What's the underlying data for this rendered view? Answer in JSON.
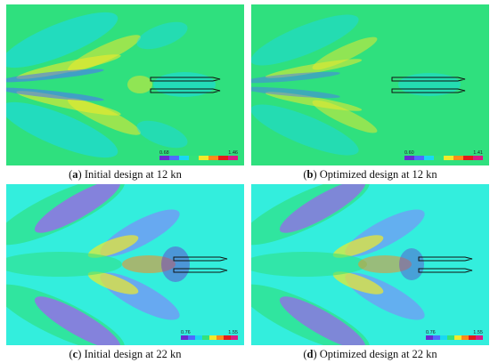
{
  "panels": [
    {
      "letter": "a",
      "text": "Initial design at 12 kn",
      "cb_min": "0.68",
      "cb_max": "1.46",
      "background": "#2fe07e"
    },
    {
      "letter": "b",
      "text": "Optimized design at 12 kn",
      "cb_min": "0.60",
      "cb_max": "1.41",
      "background": "#2fe07e"
    },
    {
      "letter": "c",
      "text": "Initial design at 22 kn",
      "cb_min": "0.76",
      "cb_max": "1.55",
      "background": "#33eedd"
    },
    {
      "letter": "d",
      "text": "Optimized design at 22 kn",
      "cb_min": "0.76",
      "cb_max": "1.55",
      "background": "#33eedd"
    }
  ],
  "colorbar_colors": [
    "#6a2bd0",
    "#4f6bff",
    "#18d8f2",
    "#33e37a",
    "#f1ea2a",
    "#ff8a1a",
    "#e41a1a",
    "#d81b86"
  ]
}
